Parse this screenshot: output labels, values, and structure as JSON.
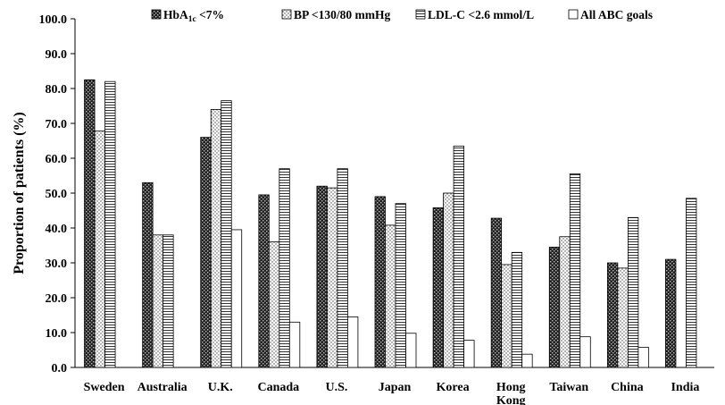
{
  "chart_data": {
    "type": "bar",
    "title": "",
    "xlabel": "",
    "ylabel": "Proportion of patients (%)",
    "ylim": [
      0,
      100
    ],
    "yticks": [
      "0.0",
      "10.0",
      "20.0",
      "30.0",
      "40.0",
      "50.0",
      "60.0",
      "70.0",
      "80.0",
      "90.0",
      "100.0"
    ],
    "grid": false,
    "legend_position": "top",
    "categories": [
      "Sweden",
      "Australia",
      "U.K.",
      "Canada",
      "U.S.",
      "Japan",
      "Korea",
      "Hong Kong",
      "Taiwan",
      "China",
      "India"
    ],
    "category_lines": [
      [
        "Sweden"
      ],
      [
        "Australia"
      ],
      [
        "U.K."
      ],
      [
        "Canada"
      ],
      [
        "U.S."
      ],
      [
        "Japan"
      ],
      [
        "Korea"
      ],
      [
        "Hong",
        "Kong"
      ],
      [
        "Taiwan"
      ],
      [
        "China"
      ],
      [
        "India"
      ]
    ],
    "series": [
      {
        "name": "HbA1c <7%",
        "legend_main": "HbA",
        "legend_sub": "1c",
        "legend_tail": " <7%",
        "pattern": "dark-checker",
        "values": [
          82.5,
          53.0,
          66.0,
          49.5,
          52.0,
          49.0,
          45.8,
          42.8,
          34.5,
          30.0,
          31.0
        ]
      },
      {
        "name": "BP <130/80 mmHg",
        "legend_main": "BP <130/80 mmHg",
        "pattern": "dots",
        "values": [
          67.8,
          38.0,
          74.0,
          36.0,
          51.5,
          40.8,
          50.0,
          29.5,
          37.5,
          28.5,
          null
        ]
      },
      {
        "name": "LDL-C <2.6 mmol/L",
        "legend_main": "LDL-C <2.6 mmol/L",
        "pattern": "hlines",
        "values": [
          82.0,
          38.0,
          76.5,
          57.0,
          57.0,
          47.0,
          63.5,
          33.0,
          55.5,
          43.0,
          48.5
        ]
      },
      {
        "name": "All ABC goals",
        "legend_main": "All ABC goals",
        "pattern": "white",
        "values": [
          null,
          null,
          39.5,
          13.0,
          14.5,
          9.8,
          7.8,
          3.8,
          8.8,
          5.8,
          null
        ]
      }
    ]
  }
}
